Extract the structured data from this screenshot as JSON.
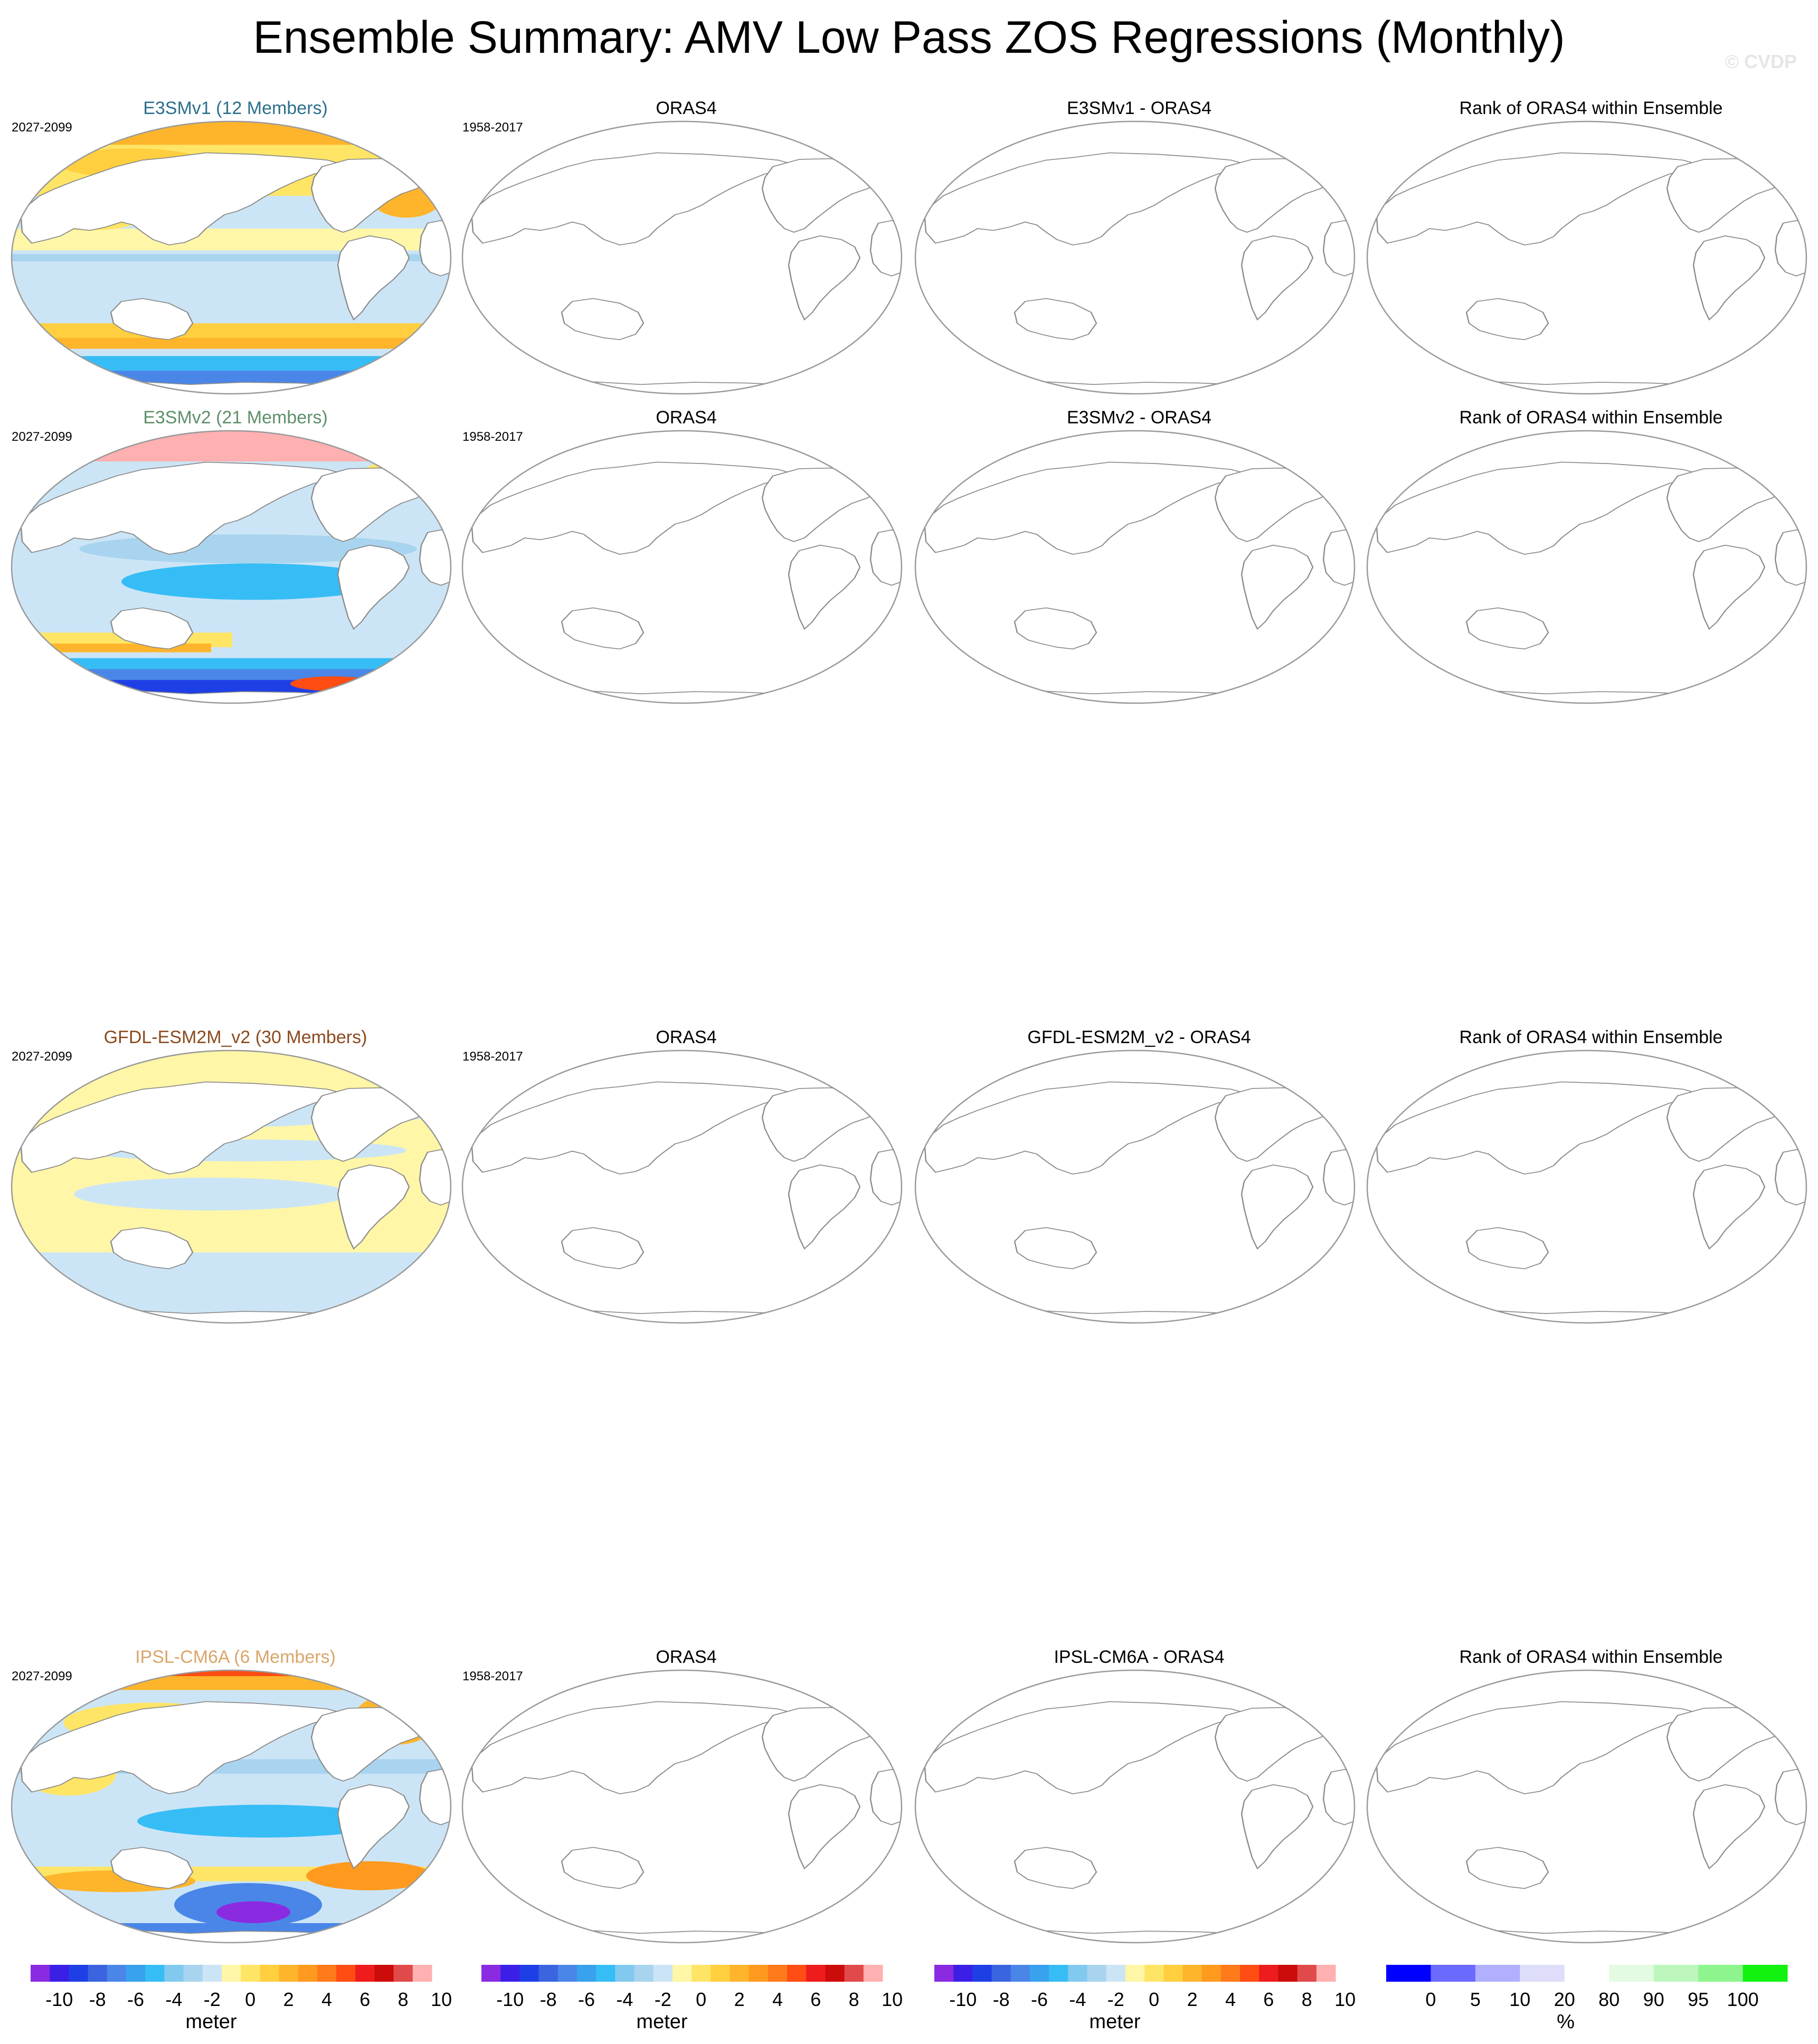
{
  "title": "Ensemble Summary: AMV Low Pass ZOS Regressions (Monthly)",
  "watermark": "© CVDP",
  "observation_label": "ORAS4",
  "rank_label": "Rank of ORAS4 within Ensemble",
  "colors": {
    "land": "#ffffff",
    "coast": "#8a8a8a",
    "frame": "#9a9a9a"
  },
  "rows": [
    {
      "model_label": "E3SMv1 (12 Members)",
      "model_color": "#2c6f8c",
      "diff_label": "E3SMv1 - ORAS4",
      "model_period": "2027-2099",
      "obs_period": "1958-2017",
      "pattern": "warm"
    },
    {
      "model_label": "E3SMv2 (21 Members)",
      "model_color": "#5e8f6a",
      "diff_label": "E3SMv2 - ORAS4",
      "model_period": "2027-2099",
      "obs_period": "1958-2017",
      "pattern": "cool"
    },
    {
      "model_label": "GFDL-ESM2M_v2 (30 Members)",
      "model_color": "#8b4a1e",
      "diff_label": "GFDL-ESM2M_v2 - ORAS4",
      "model_period": "2027-2099",
      "obs_period": "1958-2017",
      "pattern": "weak"
    },
    {
      "model_label": "IPSL-CM6A (6 Members)",
      "model_color": "#d9a66a",
      "diff_label": "IPSL-CM6A - ORAS4",
      "model_period": "2027-2099",
      "obs_period": "1958-2017",
      "pattern": "mixed"
    }
  ],
  "zos_colorbar": {
    "colors": [
      "#8a2be2",
      "#3b1fe6",
      "#1f3fe6",
      "#3a64e0",
      "#4a86e8",
      "#39a2ee",
      "#37bdf5",
      "#82c9f0",
      "#a9d4ef",
      "#cce5f6",
      "#fff6a8",
      "#ffe566",
      "#ffcf3f",
      "#ffb52b",
      "#ff9a1f",
      "#ff7a1a",
      "#ff4d14",
      "#ee1c1c",
      "#cc0b0b",
      "#e04a4a",
      "#ffb0b0"
    ],
    "tick_labels": [
      "-10",
      "-8",
      "-6",
      "-4",
      "-2",
      "0",
      "2",
      "4",
      "6",
      "8",
      "10"
    ],
    "unit": "meter"
  },
  "rank_colorbar": {
    "colors": [
      "#0000ff",
      "#6a6aff",
      "#b0b0ff",
      "#dedefa",
      "#ffffff",
      "#e2fbe2",
      "#bdf7bd",
      "#8ef58e",
      "#11f211"
    ],
    "tick_labels": [
      "0",
      "5",
      "10",
      "20",
      "80",
      "90",
      "95",
      "100"
    ],
    "unit": "%"
  }
}
